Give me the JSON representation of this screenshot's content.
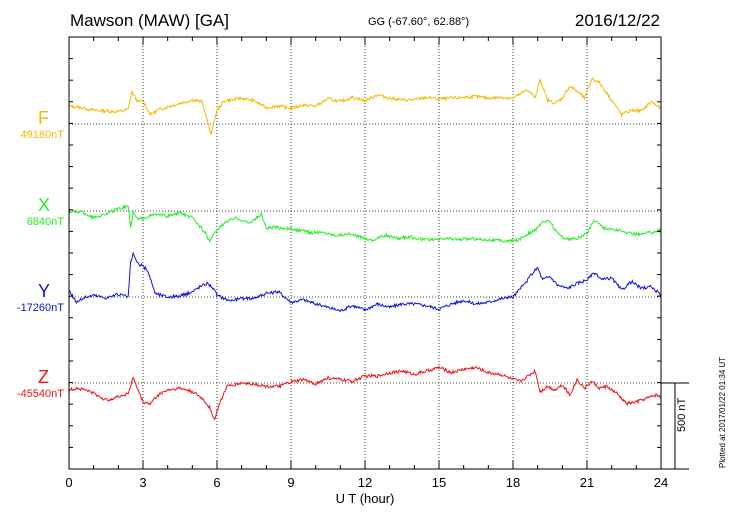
{
  "header": {
    "station": "Mawson (MAW)  [GA]",
    "coords": "GG (-67.60°,  62.88°)",
    "date": "2016/12/22"
  },
  "plot_note": "Plotted at 2017/01/22 01:34 UT",
  "scale_bar_label": "500 nT",
  "chart_data": {
    "type": "line",
    "xlabel": "U T (hour)",
    "xlim": [
      0,
      24
    ],
    "xticks": [
      "0",
      "3",
      "6",
      "9",
      "12",
      "15",
      "18",
      "21",
      "24"
    ],
    "scale_bar_nT": 500,
    "grid": "dotted",
    "series": [
      {
        "name": "F",
        "baseline_label": "49180nT",
        "baseline_nT": 49180,
        "color": "#f5b800",
        "x": [
          0,
          0.5,
          1,
          1.5,
          2,
          2.4,
          2.55,
          2.65,
          2.8,
          3,
          3.3,
          3.6,
          4,
          4.5,
          5,
          5.4,
          5.75,
          6,
          6.3,
          6.6,
          7,
          7.5,
          8,
          8.5,
          9,
          9.5,
          10,
          10.5,
          11,
          11.5,
          12,
          12.5,
          13,
          13.5,
          14,
          14.5,
          15,
          15.5,
          16,
          16.5,
          17,
          17.5,
          18,
          18.3,
          18.6,
          18.9,
          19.1,
          19.4,
          19.7,
          20,
          20.3,
          20.6,
          20.9,
          21.2,
          21.5,
          21.8,
          22.1,
          22.4,
          22.8,
          23.2,
          23.6,
          24
        ],
        "y": [
          105,
          95,
          80,
          75,
          72,
          85,
          190,
          160,
          130,
          135,
          55,
          80,
          100,
          120,
          140,
          130,
          -60,
          80,
          135,
          140,
          150,
          135,
          95,
          105,
          90,
          110,
          105,
          145,
          130,
          155,
          135,
          170,
          150,
          140,
          140,
          155,
          145,
          150,
          155,
          160,
          150,
          155,
          150,
          175,
          200,
          150,
          260,
          140,
          120,
          150,
          220,
          190,
          150,
          265,
          240,
          180,
          120,
          55,
          80,
          75,
          130,
          90
        ]
      },
      {
        "name": "X",
        "baseline_label": "6840nT",
        "baseline_nT": 6840,
        "color": "#22ee22",
        "x": [
          0,
          0.5,
          1,
          1.5,
          2,
          2.4,
          2.5,
          2.6,
          2.8,
          3,
          3.5,
          4,
          4.5,
          5,
          5.5,
          5.7,
          6,
          6.4,
          6.8,
          7.3,
          7.8,
          8,
          8.3,
          8.8,
          9.2,
          9.8,
          10.3,
          10.8,
          11.3,
          11.8,
          12.3,
          12.8,
          13.3,
          13.8,
          14.3,
          14.8,
          15.3,
          15.8,
          16.3,
          16.8,
          17.3,
          17.8,
          18.2,
          18.5,
          18.8,
          19,
          19.2,
          19.5,
          19.8,
          20.2,
          20.6,
          21,
          21.3,
          21.7,
          22.2,
          22.7,
          23.2,
          23.7,
          24
        ],
        "y": [
          -5,
          -5,
          -40,
          -15,
          10,
          30,
          -100,
          -10,
          -50,
          -40,
          -20,
          -30,
          -10,
          -40,
          -120,
          -175,
          -110,
          -60,
          -40,
          -70,
          -20,
          -100,
          -95,
          -100,
          -110,
          -125,
          -125,
          -140,
          -135,
          -150,
          -170,
          -140,
          -160,
          -150,
          -165,
          -170,
          -160,
          -165,
          -160,
          -165,
          -170,
          -175,
          -170,
          -140,
          -120,
          -100,
          -60,
          -60,
          -130,
          -165,
          -160,
          -130,
          -50,
          -100,
          -110,
          -130,
          -135,
          -120,
          -110
        ]
      },
      {
        "name": "Y",
        "baseline_label": "-17260nT",
        "baseline_nT": -17260,
        "color": "#1111dd",
        "x": [
          0,
          0.3,
          0.6,
          1,
          1.5,
          2,
          2.4,
          2.5,
          2.6,
          2.8,
          3,
          3.2,
          3.5,
          4,
          4.5,
          5,
          5.3,
          5.6,
          5.8,
          6,
          6.5,
          7,
          7.5,
          8,
          8.5,
          9,
          9.5,
          10,
          10.5,
          11,
          11.5,
          12,
          12.5,
          13,
          13.5,
          14,
          14.5,
          15,
          15.5,
          16,
          16.5,
          17,
          17.5,
          18,
          18.5,
          18.8,
          19,
          19.2,
          19.5,
          19.8,
          20.2,
          20.6,
          21,
          21.3,
          21.6,
          22,
          22.4,
          22.8,
          23.2,
          23.6,
          24
        ],
        "y": [
          40,
          -30,
          -5,
          10,
          -5,
          15,
          0,
          200,
          250,
          190,
          180,
          150,
          20,
          0,
          5,
          30,
          60,
          80,
          60,
          10,
          -20,
          -10,
          -5,
          20,
          30,
          -30,
          -15,
          -40,
          -60,
          -80,
          -50,
          -75,
          -40,
          -60,
          -40,
          -40,
          -50,
          -70,
          -40,
          -20,
          -40,
          -30,
          -10,
          0,
          80,
          140,
          170,
          100,
          120,
          70,
          50,
          80,
          100,
          140,
          100,
          110,
          40,
          90,
          50,
          60,
          10
        ]
      },
      {
        "name": "Z",
        "baseline_label": "-45540nT",
        "baseline_nT": -45540,
        "color": "#ee1111",
        "x": [
          0,
          0.3,
          0.7,
          1,
          1.5,
          2,
          2.4,
          2.6,
          2.8,
          3,
          3.3,
          3.6,
          4,
          4.5,
          5,
          5.4,
          5.7,
          5.9,
          6.1,
          6.4,
          7,
          7.5,
          8,
          8.5,
          9,
          9.5,
          10,
          10.5,
          11,
          11.5,
          12,
          12.5,
          13,
          13.5,
          14,
          14.5,
          15,
          15.5,
          16,
          16.5,
          17,
          17.5,
          18,
          18.3,
          18.6,
          18.9,
          19.1,
          19.4,
          19.7,
          20,
          20.3,
          20.6,
          20.9,
          21.2,
          21.5,
          21.8,
          22.2,
          22.6,
          23,
          23.4,
          23.8,
          24
        ],
        "y": [
          -40,
          -30,
          -40,
          -60,
          -100,
          -80,
          -60,
          30,
          -40,
          -110,
          -120,
          -70,
          -40,
          -30,
          -50,
          -90,
          -140,
          -215,
          -120,
          -20,
          0,
          -5,
          -20,
          -20,
          5,
          20,
          -5,
          30,
          20,
          10,
          40,
          40,
          60,
          70,
          50,
          70,
          90,
          60,
          80,
          90,
          60,
          50,
          20,
          10,
          40,
          70,
          -50,
          -20,
          -40,
          -10,
          -70,
          20,
          -30,
          10,
          -30,
          -20,
          -60,
          -120,
          -110,
          -90,
          -70,
          -80
        ]
      }
    ]
  }
}
